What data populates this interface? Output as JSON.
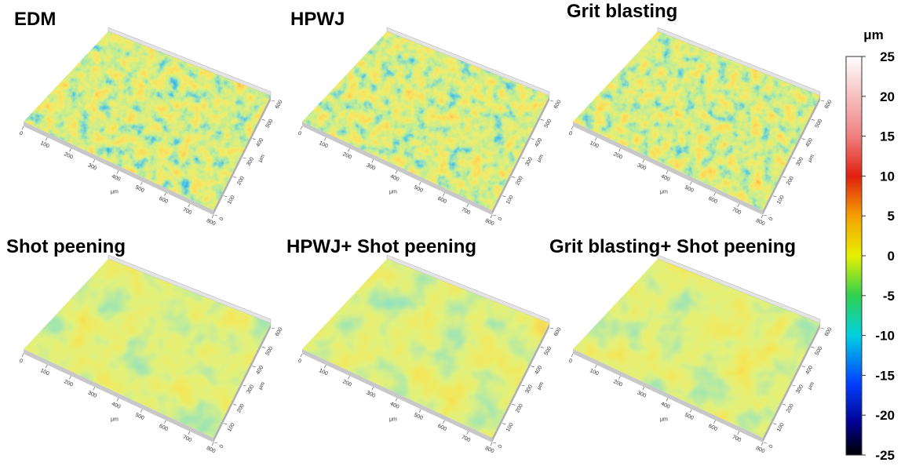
{
  "panels": [
    {
      "title": "EDM"
    },
    {
      "title": "HPWJ"
    },
    {
      "title": "Grit blasting"
    },
    {
      "title": "Shot peening"
    },
    {
      "title": "HPWJ+ Shot peening"
    },
    {
      "title": "Grit blasting+ Shot peening"
    }
  ],
  "axis": {
    "x_ticks": [
      "0",
      "100",
      "200",
      "300",
      "400",
      "500",
      "600",
      "700",
      "800"
    ],
    "y_ticks": [
      "0",
      "100",
      "200",
      "300",
      "400",
      "500",
      "600"
    ],
    "unit": "μm"
  },
  "colorbar": {
    "unit": "μm",
    "lim": [
      -25,
      25
    ],
    "ticks": [
      25,
      20,
      15,
      10,
      5,
      0,
      -5,
      -10,
      -15,
      -20,
      -25
    ]
  }
}
